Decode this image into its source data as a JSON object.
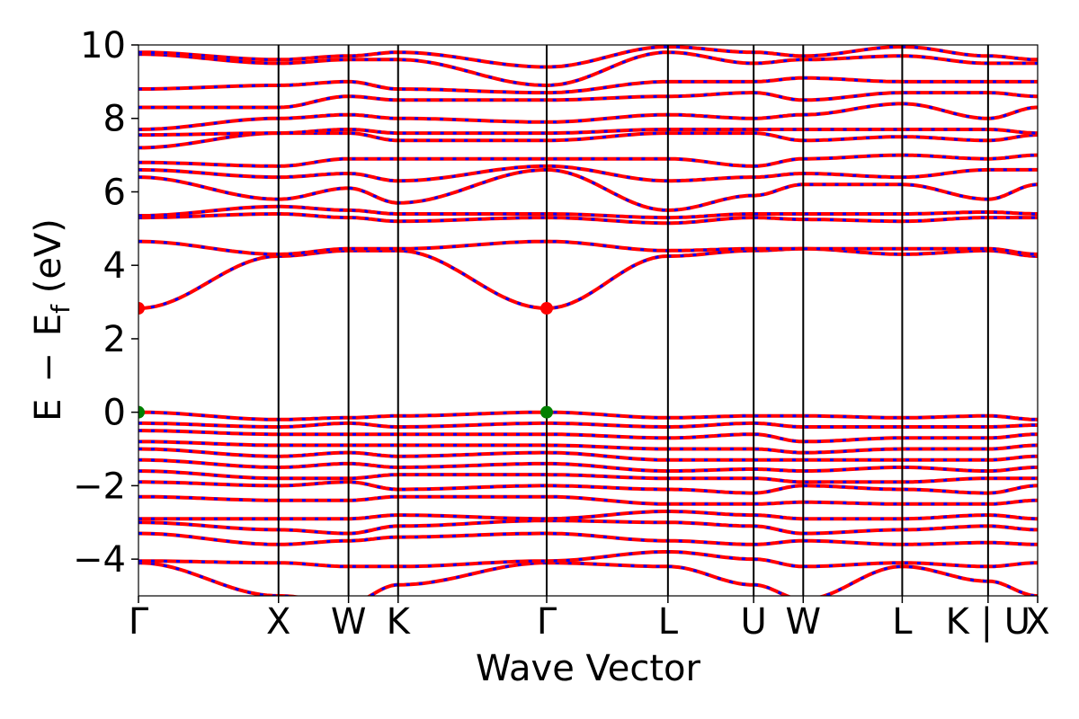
{
  "chart_data": {
    "type": "line",
    "title": "",
    "xlabel": "Wave Vector",
    "ylabel_parts": {
      "e": "E",
      "minus": "−",
      "ef_main": "E",
      "ef_sub": "f",
      "unit": " (eV)"
    },
    "ylim": [
      -5,
      10
    ],
    "y_ticks": [
      -4,
      -2,
      0,
      2,
      4,
      6,
      8,
      10
    ],
    "y_tick_labels": [
      "−4",
      "−2",
      "0",
      "2",
      "4",
      "6",
      "8",
      "10"
    ],
    "kpoints": [
      {
        "label": "Γ",
        "x": 0.0
      },
      {
        "label": "X",
        "x": 1.0
      },
      {
        "label": "W",
        "x": 1.5
      },
      {
        "label": "K",
        "x": 1.854
      },
      {
        "label": "Γ",
        "x": 2.915
      },
      {
        "label": "L",
        "x": 3.781
      },
      {
        "label": "U",
        "x": 4.393
      },
      {
        "label": "W",
        "x": 4.747
      },
      {
        "label": "L",
        "x": 5.454
      },
      {
        "label": "K | U",
        "x": 6.067
      },
      {
        "label": "X",
        "x": 6.421
      }
    ],
    "xlim": [
      0,
      6.421
    ],
    "markers": [
      {
        "name": "CBM",
        "x": 0.0,
        "y": 2.83,
        "color": "#ff0000"
      },
      {
        "name": "CBM",
        "x": 2.915,
        "y": 2.83,
        "color": "#ff0000"
      },
      {
        "name": "VBM",
        "x": 0.0,
        "y": 0.0,
        "color": "#008000"
      },
      {
        "name": "VBM",
        "x": 2.915,
        "y": 0.0,
        "color": "#008000"
      }
    ],
    "bands_at_kpoints": [
      [
        -4.1,
        -5.0,
        -5.2,
        -4.7,
        -4.1,
        -4.2,
        -4.7,
        -5.1,
        -4.2,
        -4.6,
        -5.0
      ],
      [
        -4.05,
        -4.1,
        -4.2,
        -4.2,
        -4.05,
        -3.8,
        -4.0,
        -4.2,
        -4.1,
        -4.2,
        -4.1
      ],
      [
        -3.3,
        -3.6,
        -3.5,
        -3.4,
        -3.3,
        -3.5,
        -3.6,
        -3.5,
        -3.6,
        -3.55,
        -3.6
      ],
      [
        -3.0,
        -3.2,
        -3.3,
        -3.1,
        -2.95,
        -3.0,
        -3.1,
        -3.3,
        -3.2,
        -3.1,
        -3.2
      ],
      [
        -2.9,
        -2.9,
        -2.9,
        -2.8,
        -2.9,
        -2.7,
        -2.8,
        -2.9,
        -2.9,
        -2.8,
        -2.9
      ],
      [
        -2.3,
        -2.4,
        -2.4,
        -2.3,
        -2.3,
        -2.5,
        -2.5,
        -2.45,
        -2.5,
        -2.5,
        -2.4
      ],
      [
        -1.9,
        -2.0,
        -1.9,
        -2.1,
        -2.0,
        -2.1,
        -2.2,
        -2.0,
        -2.1,
        -2.2,
        -2.0
      ],
      [
        -1.6,
        -1.8,
        -1.8,
        -1.7,
        -1.7,
        -1.8,
        -1.8,
        -1.9,
        -1.9,
        -1.8,
        -1.8
      ],
      [
        -1.3,
        -1.5,
        -1.4,
        -1.5,
        -1.4,
        -1.6,
        -1.55,
        -1.6,
        -1.5,
        -1.6,
        -1.5
      ],
      [
        -1.0,
        -1.2,
        -1.1,
        -1.2,
        -1.1,
        -1.3,
        -1.3,
        -1.3,
        -1.3,
        -1.3,
        -1.2
      ],
      [
        -0.8,
        -0.9,
        -0.9,
        -0.9,
        -0.9,
        -1.0,
        -1.0,
        -1.1,
        -1.0,
        -1.0,
        -0.9
      ],
      [
        -0.5,
        -0.6,
        -0.6,
        -0.6,
        -0.6,
        -0.7,
        -0.6,
        -0.8,
        -0.7,
        -0.7,
        -0.6
      ],
      [
        -0.3,
        -0.4,
        -0.3,
        -0.4,
        -0.3,
        -0.4,
        -0.3,
        -0.4,
        -0.4,
        -0.4,
        -0.35
      ],
      [
        0.0,
        -0.2,
        -0.15,
        -0.1,
        0.0,
        -0.15,
        -0.1,
        -0.1,
        -0.15,
        -0.1,
        -0.2
      ],
      [
        2.83,
        4.25,
        4.4,
        4.4,
        2.83,
        4.25,
        4.4,
        4.45,
        4.3,
        4.4,
        4.25
      ],
      [
        4.65,
        4.3,
        4.45,
        4.45,
        4.65,
        4.4,
        4.45,
        4.45,
        4.45,
        4.45,
        4.3
      ],
      [
        5.3,
        5.4,
        5.3,
        5.2,
        5.3,
        5.15,
        5.3,
        5.25,
        5.2,
        5.3,
        5.3
      ],
      [
        5.35,
        5.6,
        5.5,
        5.4,
        5.4,
        5.3,
        5.4,
        5.4,
        5.4,
        5.45,
        5.4
      ],
      [
        6.4,
        5.8,
        6.1,
        5.7,
        6.6,
        5.5,
        5.9,
        6.2,
        6.2,
        5.8,
        6.2
      ],
      [
        6.6,
        6.4,
        6.5,
        6.3,
        6.7,
        6.3,
        6.4,
        6.5,
        6.4,
        6.6,
        6.6
      ],
      [
        6.8,
        6.7,
        6.9,
        6.9,
        6.9,
        6.9,
        6.7,
        6.9,
        7.0,
        6.9,
        7.0
      ],
      [
        7.2,
        7.6,
        7.6,
        7.4,
        7.4,
        7.6,
        7.6,
        7.4,
        7.5,
        7.4,
        7.55
      ],
      [
        7.55,
        7.6,
        7.7,
        7.6,
        7.6,
        7.7,
        7.7,
        7.7,
        7.7,
        7.7,
        7.6
      ],
      [
        7.7,
        8.0,
        8.1,
        8.0,
        7.9,
        8.1,
        8.0,
        8.1,
        8.4,
        8.0,
        8.3
      ],
      [
        8.3,
        8.3,
        8.6,
        8.5,
        8.5,
        8.6,
        8.7,
        8.5,
        8.7,
        8.7,
        8.6
      ],
      [
        8.8,
        8.9,
        9.0,
        8.8,
        8.7,
        9.0,
        9.0,
        9.1,
        9.0,
        9.0,
        9.0
      ],
      [
        9.75,
        9.5,
        9.6,
        9.6,
        8.9,
        9.8,
        9.5,
        9.6,
        9.7,
        9.5,
        9.5
      ],
      [
        9.8,
        9.6,
        9.7,
        9.8,
        9.4,
        9.95,
        9.8,
        9.7,
        9.95,
        9.7,
        9.6
      ]
    ],
    "colors": {
      "band_solid": "#ff0000",
      "band_dash": "#0000ff",
      "axis": "#000000"
    }
  }
}
